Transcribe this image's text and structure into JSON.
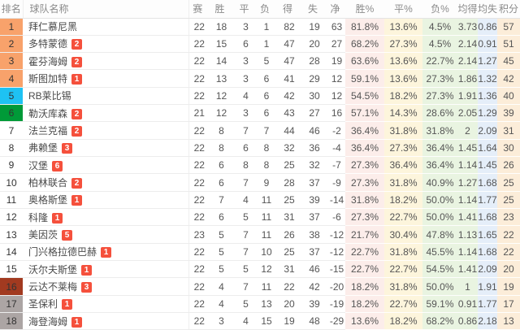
{
  "table": {
    "columns": [
      {
        "key": "rank",
        "label": "排名"
      },
      {
        "key": "team",
        "label": "球队名称"
      },
      {
        "key": "played",
        "label": "赛"
      },
      {
        "key": "won",
        "label": "胜"
      },
      {
        "key": "drawn",
        "label": "平"
      },
      {
        "key": "lost",
        "label": "负"
      },
      {
        "key": "gf",
        "label": "得"
      },
      {
        "key": "ga",
        "label": "失"
      },
      {
        "key": "gd",
        "label": "净"
      },
      {
        "key": "win_pct",
        "label": "胜%",
        "band": "#fcedea"
      },
      {
        "key": "draw_pct",
        "label": "平%",
        "band": "#fdf5dc"
      },
      {
        "key": "loss_pct",
        "label": "负%",
        "band": "#e9f4e1"
      },
      {
        "key": "avg_gf",
        "label": "均得",
        "band": "#e9f4e1"
      },
      {
        "key": "avg_ga",
        "label": "均失",
        "band": "#e5eef9"
      },
      {
        "key": "points",
        "label": "积分",
        "band": "#fcedd9"
      }
    ],
    "rows": [
      {
        "rank": "1",
        "team": "拜仁慕尼黑",
        "badge": "",
        "zone": "top4",
        "played": "22",
        "won": "18",
        "drawn": "3",
        "lost": "1",
        "gf": "82",
        "ga": "19",
        "gd": "63",
        "win_pct": "81.8%",
        "draw_pct": "13.6%",
        "loss_pct": "4.5%",
        "avg_gf": "3.73",
        "avg_ga": "0.86",
        "points": "57"
      },
      {
        "rank": "2",
        "team": "多特蒙德",
        "badge": "2",
        "zone": "top4",
        "played": "22",
        "won": "15",
        "drawn": "6",
        "lost": "1",
        "gf": "47",
        "ga": "20",
        "gd": "27",
        "win_pct": "68.2%",
        "draw_pct": "27.3%",
        "loss_pct": "4.5%",
        "avg_gf": "2.14",
        "avg_ga": "0.91",
        "points": "51"
      },
      {
        "rank": "3",
        "team": "霍芬海姆",
        "badge": "2",
        "zone": "top4",
        "played": "22",
        "won": "14",
        "drawn": "3",
        "lost": "5",
        "gf": "47",
        "ga": "28",
        "gd": "19",
        "win_pct": "63.6%",
        "draw_pct": "13.6%",
        "loss_pct": "22.7%",
        "avg_gf": "2.14",
        "avg_ga": "1.27",
        "points": "45"
      },
      {
        "rank": "4",
        "team": "斯图加特",
        "badge": "1",
        "zone": "top4",
        "played": "22",
        "won": "13",
        "drawn": "3",
        "lost": "6",
        "gf": "41",
        "ga": "29",
        "gd": "12",
        "win_pct": "59.1%",
        "draw_pct": "13.6%",
        "loss_pct": "27.3%",
        "avg_gf": "1.86",
        "avg_ga": "1.32",
        "points": "42"
      },
      {
        "rank": "5",
        "team": "RB莱比锡",
        "badge": "",
        "zone": "five",
        "played": "22",
        "won": "12",
        "drawn": "4",
        "lost": "6",
        "gf": "42",
        "ga": "30",
        "gd": "12",
        "win_pct": "54.5%",
        "draw_pct": "18.2%",
        "loss_pct": "27.3%",
        "avg_gf": "1.91",
        "avg_ga": "1.36",
        "points": "40"
      },
      {
        "rank": "6",
        "team": "勒沃库森",
        "badge": "2",
        "zone": "six",
        "played": "21",
        "won": "12",
        "drawn": "3",
        "lost": "6",
        "gf": "43",
        "ga": "27",
        "gd": "16",
        "win_pct": "57.1%",
        "draw_pct": "14.3%",
        "loss_pct": "28.6%",
        "avg_gf": "2.05",
        "avg_ga": "1.29",
        "points": "39"
      },
      {
        "rank": "7",
        "team": "法兰克福",
        "badge": "2",
        "zone": "none",
        "played": "22",
        "won": "8",
        "drawn": "7",
        "lost": "7",
        "gf": "44",
        "ga": "46",
        "gd": "-2",
        "win_pct": "36.4%",
        "draw_pct": "31.8%",
        "loss_pct": "31.8%",
        "avg_gf": "2",
        "avg_ga": "2.09",
        "points": "31"
      },
      {
        "rank": "8",
        "team": "弗赖堡",
        "badge": "3",
        "zone": "none",
        "played": "22",
        "won": "8",
        "drawn": "6",
        "lost": "8",
        "gf": "32",
        "ga": "36",
        "gd": "-4",
        "win_pct": "36.4%",
        "draw_pct": "27.3%",
        "loss_pct": "36.4%",
        "avg_gf": "1.45",
        "avg_ga": "1.64",
        "points": "30"
      },
      {
        "rank": "9",
        "team": "汉堡",
        "badge": "6",
        "zone": "none",
        "played": "22",
        "won": "6",
        "drawn": "8",
        "lost": "8",
        "gf": "25",
        "ga": "32",
        "gd": "-7",
        "win_pct": "27.3%",
        "draw_pct": "36.4%",
        "loss_pct": "36.4%",
        "avg_gf": "1.14",
        "avg_ga": "1.45",
        "points": "26"
      },
      {
        "rank": "10",
        "team": "柏林联合",
        "badge": "2",
        "zone": "none",
        "played": "22",
        "won": "6",
        "drawn": "7",
        "lost": "9",
        "gf": "28",
        "ga": "37",
        "gd": "-9",
        "win_pct": "27.3%",
        "draw_pct": "31.8%",
        "loss_pct": "40.9%",
        "avg_gf": "1.27",
        "avg_ga": "1.68",
        "points": "25"
      },
      {
        "rank": "11",
        "team": "奥格斯堡",
        "badge": "1",
        "zone": "none",
        "played": "22",
        "won": "7",
        "drawn": "4",
        "lost": "11",
        "gf": "25",
        "ga": "39",
        "gd": "-14",
        "win_pct": "31.8%",
        "draw_pct": "18.2%",
        "loss_pct": "50.0%",
        "avg_gf": "1.14",
        "avg_ga": "1.77",
        "points": "25"
      },
      {
        "rank": "12",
        "team": "科隆",
        "badge": "1",
        "zone": "none",
        "played": "22",
        "won": "6",
        "drawn": "5",
        "lost": "11",
        "gf": "31",
        "ga": "37",
        "gd": "-6",
        "win_pct": "27.3%",
        "draw_pct": "22.7%",
        "loss_pct": "50.0%",
        "avg_gf": "1.41",
        "avg_ga": "1.68",
        "points": "23"
      },
      {
        "rank": "13",
        "team": "美因茨",
        "badge": "5",
        "zone": "none",
        "played": "23",
        "won": "5",
        "drawn": "7",
        "lost": "11",
        "gf": "26",
        "ga": "38",
        "gd": "-12",
        "win_pct": "21.7%",
        "draw_pct": "30.4%",
        "loss_pct": "47.8%",
        "avg_gf": "1.13",
        "avg_ga": "1.65",
        "points": "22"
      },
      {
        "rank": "14",
        "team": "门兴格拉德巴赫",
        "badge": "1",
        "zone": "none",
        "played": "22",
        "won": "5",
        "drawn": "7",
        "lost": "10",
        "gf": "25",
        "ga": "37",
        "gd": "-12",
        "win_pct": "22.7%",
        "draw_pct": "31.8%",
        "loss_pct": "45.5%",
        "avg_gf": "1.14",
        "avg_ga": "1.68",
        "points": "22"
      },
      {
        "rank": "15",
        "team": "沃尔夫斯堡",
        "badge": "1",
        "zone": "none",
        "played": "22",
        "won": "5",
        "drawn": "5",
        "lost": "12",
        "gf": "31",
        "ga": "46",
        "gd": "-15",
        "win_pct": "22.7%",
        "draw_pct": "22.7%",
        "loss_pct": "54.5%",
        "avg_gf": "1.41",
        "avg_ga": "2.09",
        "points": "20"
      },
      {
        "rank": "16",
        "team": "云达不莱梅",
        "badge": "3",
        "zone": "sixteen",
        "played": "22",
        "won": "4",
        "drawn": "7",
        "lost": "11",
        "gf": "22",
        "ga": "42",
        "gd": "-20",
        "win_pct": "18.2%",
        "draw_pct": "31.8%",
        "loss_pct": "50.0%",
        "avg_gf": "1",
        "avg_ga": "1.91",
        "points": "19"
      },
      {
        "rank": "17",
        "team": "圣保利",
        "badge": "1",
        "zone": "bottom",
        "played": "22",
        "won": "4",
        "drawn": "5",
        "lost": "13",
        "gf": "20",
        "ga": "39",
        "gd": "-19",
        "win_pct": "18.2%",
        "draw_pct": "22.7%",
        "loss_pct": "59.1%",
        "avg_gf": "0.91",
        "avg_ga": "1.77",
        "points": "17"
      },
      {
        "rank": "18",
        "team": "海登海姆",
        "badge": "1",
        "zone": "bottom",
        "played": "22",
        "won": "3",
        "drawn": "4",
        "lost": "15",
        "gf": "19",
        "ga": "48",
        "gd": "-29",
        "win_pct": "13.6%",
        "draw_pct": "18.2%",
        "loss_pct": "68.2%",
        "avg_gf": "0.86",
        "avg_ga": "2.18",
        "points": "13"
      }
    ]
  },
  "colors": {
    "badge": "#f5503c",
    "rank_top4": "#f8a26b",
    "rank_five": "#1ec2f3",
    "rank_six": "#009a38",
    "rank_sixteen": "#a23a20",
    "rank_bottom": "#aca5a4"
  }
}
